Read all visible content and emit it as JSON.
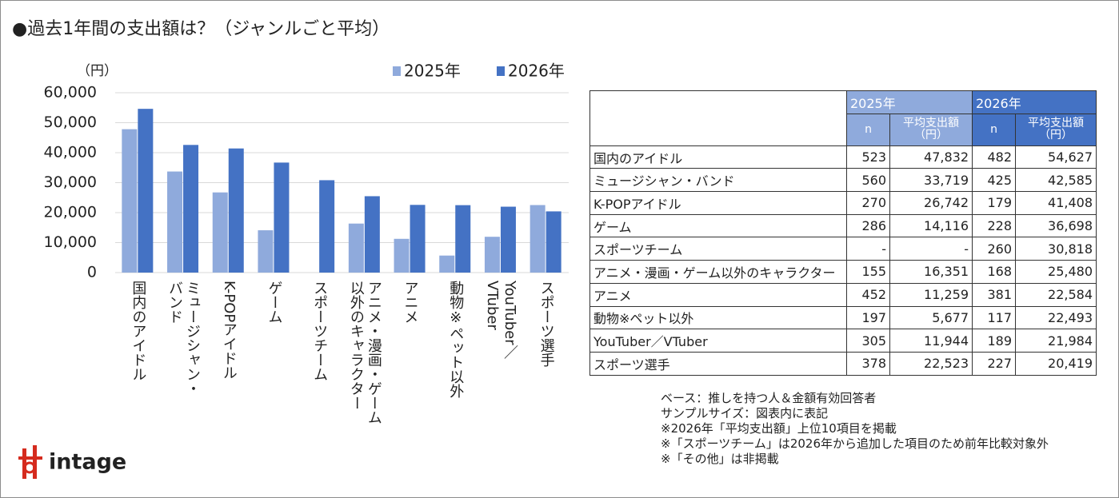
{
  "chart_data": {
    "type": "bar",
    "title": "●過去1年間の支出額は？（ジャンルごと平均）",
    "y_unit": "（円）",
    "categories": [
      "国内のアイドル",
      "ミュージシャン・\nバンド",
      "K-POPアイドル",
      "ゲーム",
      "スポーツチーム",
      "アニメ・漫画・ゲーム\n以外のキャラクター",
      "アニメ",
      "動物※ペット以外",
      "YouTuber／\nVTuber",
      "スポーツ選手"
    ],
    "series": [
      {
        "name": "2025年",
        "color": "#8faadc",
        "values": [
          47832,
          33719,
          26742,
          14116,
          null,
          16351,
          11259,
          5677,
          11944,
          22523
        ]
      },
      {
        "name": "2026年",
        "color": "#4472c4",
        "values": [
          54627,
          42585,
          41408,
          36698,
          30818,
          25480,
          22584,
          22493,
          21984,
          20419
        ]
      }
    ],
    "ylim": [
      0,
      60000
    ],
    "yticks": [
      0,
      {
        "value": 10000,
        "label": "10,000"
      },
      {
        "value": 20000,
        "label": "20,000"
      },
      {
        "value": 30000,
        "label": "30,000"
      },
      {
        "value": 40000,
        "label": "40,000"
      },
      {
        "value": 50000,
        "label": "50,000"
      },
      {
        "value": 60000,
        "label": "60,000"
      }
    ],
    "grid": true,
    "legend": "top"
  },
  "table": {
    "groups": [
      "2025年",
      "2026年"
    ],
    "columns": [
      "n",
      "平均支出額\n（円）",
      "n",
      "平均支出額\n（円）"
    ],
    "rows": [
      [
        "国内のアイドル",
        "523",
        "47,832",
        "482",
        "54,627"
      ],
      [
        "ミュージシャン・バンド",
        "560",
        "33,719",
        "425",
        "42,585"
      ],
      [
        "K-POPアイドル",
        "270",
        "26,742",
        "179",
        "41,408"
      ],
      [
        "ゲーム",
        "286",
        "14,116",
        "228",
        "36,698"
      ],
      [
        "スポーツチーム",
        "-",
        "-",
        "260",
        "30,818"
      ],
      [
        "アニメ・漫画・ゲーム以外のキャラクター",
        "155",
        "16,351",
        "168",
        "25,480"
      ],
      [
        "アニメ",
        "452",
        "11,259",
        "381",
        "22,584"
      ],
      [
        "動物※ペット以外",
        "197",
        "5,677",
        "117",
        "22,493"
      ],
      [
        "YouTuber／VTuber",
        "305",
        "11,944",
        "189",
        "21,984"
      ],
      [
        "スポーツ選手",
        "378",
        "22,523",
        "227",
        "20,419"
      ]
    ]
  },
  "notes": [
    "ベース：推しを持つ人＆金額有効回答者",
    "サンプルサイズ：図表内に表記",
    "※2026年「平均支出額」上位10項目を掲載",
    "※「スポーツチーム」は2026年から追加した項目のため前年比較対象外",
    "※「その他」は非掲載"
  ],
  "logo": "intage"
}
